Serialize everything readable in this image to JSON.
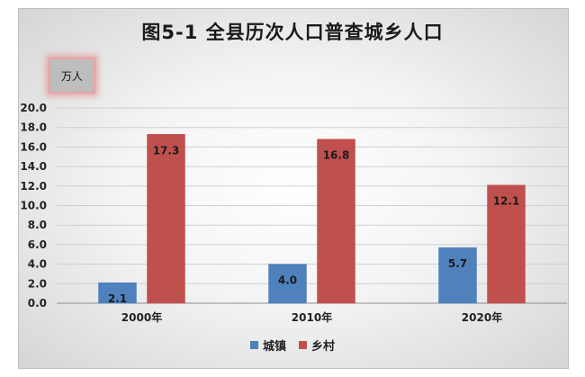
{
  "chart_data": {
    "type": "bar",
    "title": "图5-1  全县历次人口普查城乡人口",
    "unit_label": "万人",
    "categories": [
      "2000年",
      "2010年",
      "2020年"
    ],
    "series": [
      {
        "name": "城镇",
        "color": "#4f81bd",
        "values": [
          2.1,
          4.0,
          5.7
        ]
      },
      {
        "name": "乡村",
        "color": "#c0504d",
        "values": [
          17.3,
          16.8,
          12.1
        ]
      }
    ],
    "ylim": [
      0,
      20
    ],
    "yticks": [
      "0.0",
      "2.0",
      "4.0",
      "6.0",
      "8.0",
      "10.0",
      "12.0",
      "14.0",
      "16.0",
      "18.0",
      "20.0"
    ],
    "grid": true,
    "legend_position": "bottom"
  }
}
